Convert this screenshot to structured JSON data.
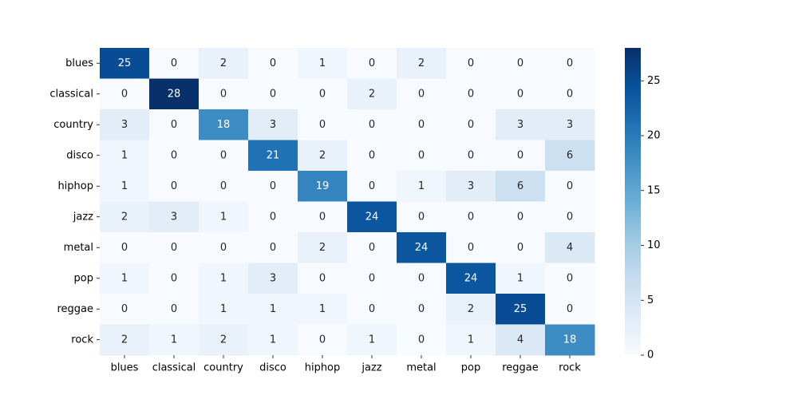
{
  "chart_data": {
    "type": "heatmap",
    "title": "",
    "xlabel": "",
    "ylabel": "",
    "x_categories": [
      "blues",
      "classical",
      "country",
      "disco",
      "hiphop",
      "jazz",
      "metal",
      "pop",
      "reggae",
      "rock"
    ],
    "y_categories": [
      "blues",
      "classical",
      "country",
      "disco",
      "hiphop",
      "jazz",
      "metal",
      "pop",
      "reggae",
      "rock"
    ],
    "values": [
      [
        25,
        0,
        2,
        0,
        1,
        0,
        2,
        0,
        0,
        0
      ],
      [
        0,
        28,
        0,
        0,
        0,
        2,
        0,
        0,
        0,
        0
      ],
      [
        3,
        0,
        18,
        3,
        0,
        0,
        0,
        0,
        3,
        3
      ],
      [
        1,
        0,
        0,
        21,
        2,
        0,
        0,
        0,
        0,
        6
      ],
      [
        1,
        0,
        0,
        0,
        19,
        0,
        1,
        3,
        6,
        0
      ],
      [
        2,
        3,
        1,
        0,
        0,
        24,
        0,
        0,
        0,
        0
      ],
      [
        0,
        0,
        0,
        0,
        2,
        0,
        24,
        0,
        0,
        4
      ],
      [
        1,
        0,
        1,
        3,
        0,
        0,
        0,
        24,
        1,
        0
      ],
      [
        0,
        0,
        1,
        1,
        1,
        0,
        0,
        2,
        25,
        0
      ],
      [
        2,
        1,
        2,
        1,
        0,
        1,
        0,
        1,
        4,
        18
      ]
    ],
    "colormap": "Blues",
    "value_range": [
      0,
      28
    ],
    "colorbar": {
      "ticks": [
        0,
        5,
        10,
        15,
        20,
        25
      ],
      "tick_labels": [
        "0",
        "5",
        "10",
        "15",
        "20",
        "25"
      ]
    },
    "annotations": true,
    "grid": false,
    "colors": {
      "low": "#f7fbff",
      "high": "#08306b",
      "text_dark": "#262626",
      "text_light": "#ffffff"
    }
  }
}
